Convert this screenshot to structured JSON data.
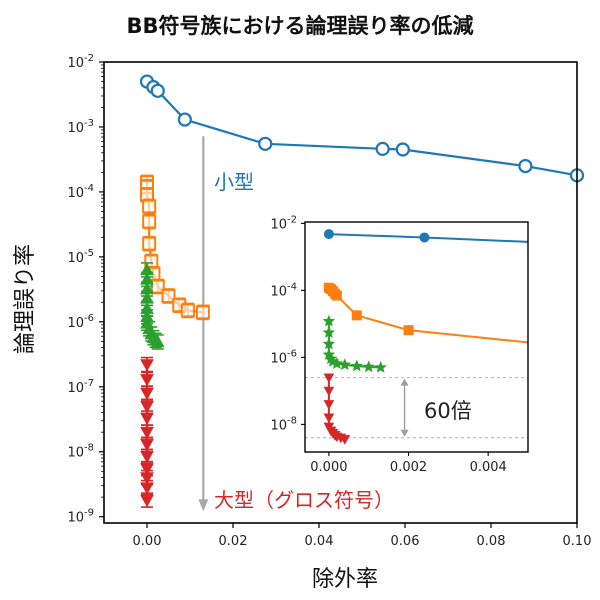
{
  "chart_data": {
    "type": "line",
    "title": "BB符号族における論理誤り率の低減",
    "xlabel": "除外率",
    "ylabel": "論理誤り率",
    "xlim": [
      -0.01,
      0.1
    ],
    "ylim": [
      8e-10,
      0.01
    ],
    "yscale": "log",
    "xticks": [
      "0.00",
      "0.02",
      "0.04",
      "0.06",
      "0.08",
      "0.10"
    ],
    "yticks": [
      {
        "base": "10",
        "exp": "-9"
      },
      {
        "base": "10",
        "exp": "-8"
      },
      {
        "base": "10",
        "exp": "-7"
      },
      {
        "base": "10",
        "exp": "-6"
      },
      {
        "base": "10",
        "exp": "-5"
      },
      {
        "base": "10",
        "exp": "-4"
      },
      {
        "base": "10",
        "exp": "-3"
      },
      {
        "base": "10",
        "exp": "-2"
      }
    ],
    "grid": false,
    "series": [
      {
        "color": "#1f77b4",
        "marker": "circle-open",
        "x": [
          0.0,
          0.0015,
          0.0025,
          0.0088,
          0.0275,
          0.0548,
          0.0595,
          0.088,
          0.1
        ],
        "y": [
          0.005,
          0.0041,
          0.0036,
          0.0013,
          0.00055,
          0.00046,
          0.00045,
          0.00025,
          0.00018
        ]
      },
      {
        "color": "#ff7f0e",
        "marker": "square-open",
        "x": [
          0.0,
          0.0,
          0.0,
          0.0005,
          0.0005,
          0.0005,
          0.001,
          0.0015,
          0.0025,
          0.005,
          0.0075,
          0.0095,
          0.013
        ],
        "y": [
          0.00014,
          0.00012,
          9e-05,
          6e-05,
          3.5e-05,
          1.6e-05,
          8.5e-06,
          5.5e-06,
          3.5e-06,
          2.5e-06,
          1.8e-06,
          1.5e-06,
          1.4e-06
        ]
      },
      {
        "color": "#2ca02c",
        "marker": "triangle",
        "x": [
          0.0,
          0.0,
          0.0,
          0.0,
          0.0,
          0.0,
          0.0,
          0.0005,
          0.001,
          0.0015,
          0.002,
          0.0025
        ],
        "y": [
          6.3e-06,
          4.5e-06,
          3.2e-06,
          2.3e-06,
          1.6e-06,
          1.2e-06,
          9.5e-07,
          7.8e-07,
          6.5e-07,
          5.7e-07,
          5.2e-07,
          4.9e-07
        ]
      },
      {
        "color": "#d62728",
        "marker": "triangle-down",
        "x": [
          0.0,
          0.0,
          0.0,
          0.0,
          0.0,
          0.0,
          0.0,
          0.0,
          0.0,
          0.0,
          0.0,
          0.0
        ],
        "y": [
          2.2e-07,
          1.3e-07,
          8e-08,
          5e-08,
          3.3e-08,
          2e-08,
          1.3e-08,
          8.5e-09,
          5.5e-09,
          4e-09,
          2.8e-09,
          1.8e-09
        ]
      }
    ],
    "annotations": [
      {
        "text": "小型",
        "color": "#1f77b4"
      },
      {
        "text": "大型（グロス符号）",
        "color": "#d62728"
      }
    ],
    "inset": {
      "xlim": [
        -0.0006,
        0.005
      ],
      "ylim": [
        1.5e-09,
        0.011
      ],
      "yscale": "log",
      "xticks": [
        "0.000",
        "0.002",
        "0.004"
      ],
      "yticks": [
        {
          "base": "10",
          "exp": "-8"
        },
        {
          "base": "10",
          "exp": "-6"
        },
        {
          "base": "10",
          "exp": "-4"
        },
        {
          "base": "10",
          "exp": "-2"
        }
      ],
      "ratio_label": "60倍",
      "ratio_lines": [
        2.5e-07,
        4e-09
      ],
      "series": [
        {
          "color": "#1f77b4",
          "marker": "circle",
          "x": [
            0.0,
            0.0024,
            0.005
          ],
          "y": [
            0.0048,
            0.0038,
            0.0028
          ]
        },
        {
          "color": "#ff7f0e",
          "marker": "square",
          "x": [
            0.0,
            5e-05,
            0.0001,
            0.00015,
            0.0002,
            0.0007,
            0.002,
            0.005
          ],
          "y": [
            0.00012,
            0.00011,
            9.5e-05,
            8e-05,
            7e-05,
            1.8e-05,
            6.5e-06,
            2.8e-06
          ]
        },
        {
          "color": "#2ca02c",
          "marker": "star",
          "x": [
            0.0,
            0.0,
            0.0,
            0.0,
            5e-05,
            0.0001,
            0.0002,
            0.0004,
            0.0007,
            0.001,
            0.0013
          ],
          "y": [
            1.2e-05,
            5.5e-06,
            2.5e-06,
            1.2e-06,
            9e-07,
            7.5e-07,
            6.5e-07,
            6e-07,
            5.5e-07,
            5.2e-07,
            5e-07
          ]
        },
        {
          "color": "#d62728",
          "marker": "triangle-down",
          "x": [
            0.0,
            0.0,
            0.0,
            0.0,
            0.0,
            5e-05,
            0.0001,
            0.00015,
            0.0002,
            0.0003,
            0.0004
          ],
          "y": [
            2.5e-07,
            1e-07,
            4e-08,
            1.6e-08,
            8.5e-09,
            6.5e-09,
            5.5e-09,
            4.8e-09,
            4.3e-09,
            4e-09,
            3.6e-09
          ]
        }
      ]
    }
  }
}
